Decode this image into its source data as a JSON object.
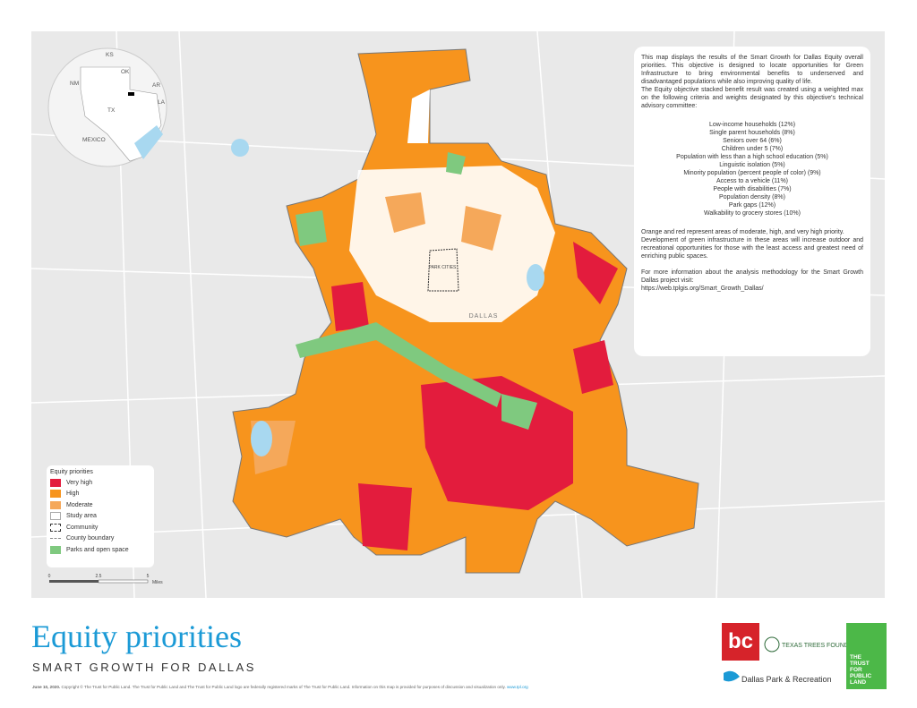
{
  "inset": {
    "labels": [
      "KS",
      "OK",
      "NM",
      "AR",
      "TX",
      "LA",
      "MEXICO"
    ]
  },
  "map_labels": [
    "PARK CITIES",
    "DALLAS"
  ],
  "info": {
    "paragraphs": [
      "This map displays the results of the Smart Growth for Dallas Equity overall priorities. This objective is designed to locate opportunities for Green Infrastructure to bring environmental benefits to underserved and disadvantaged populations while also improving quality of life.",
      "The Equity objective stacked benefit result was created using a weighted max on the following criteria and weights designated by this objective's technical advisory committee:"
    ],
    "criteria": [
      "Low-income households (12%)",
      "Single parent households (8%)",
      "Seniors over 64 (6%)",
      "Children under 5 (7%)",
      "Population with less than a high school education (5%)",
      "Linguistic isolation (5%)",
      "Minority population (percent people of color) (9%)",
      "Access to a vehicle (11%)",
      "People with disabilities (7%)",
      "Population density (8%)",
      "Park gaps (12%)",
      "Walkability to grocery stores (10%)"
    ],
    "notes": [
      "Orange and red represent areas of moderate, high, and very high priority.",
      "Development of green infrastructure in these areas will increase outdoor and recreational opportunities for those with the least access and greatest need of enriching public spaces.",
      "For more information about the analysis methodology for the Smart Growth Dallas project visit:",
      "https://web.tplgis.org/Smart_Growth_Dallas/"
    ]
  },
  "legend": {
    "title": "Equity priorities",
    "items": [
      "Very high",
      "High",
      "Moderate",
      "Study area",
      "Community",
      "County boundary",
      "Parks and open space"
    ]
  },
  "scale": {
    "ticks": [
      0,
      2.5,
      5
    ],
    "unit": "Miles"
  },
  "header": {
    "title": "Equity priorities",
    "subtitle": "SMART GROWTH FOR DALLAS"
  },
  "footer": {
    "date": "June 10, 2020.",
    "text": "Copyright © The Trust for Public Land. The Trust for Public Land and The Trust for Public Land logo are federally registered marks of The Trust for Public Land. Information on this map is provided for purposes of discussion and visualization only.",
    "url": "www.tpl.org"
  },
  "logos": {
    "bc": "bc",
    "texas_trees": "TEXAS TREES FOUNDATION",
    "dallas_parks": "Dallas Park & Recreation",
    "tpl": [
      "THE",
      "TRUST",
      "FOR",
      "PUBLIC",
      "LAND"
    ]
  }
}
